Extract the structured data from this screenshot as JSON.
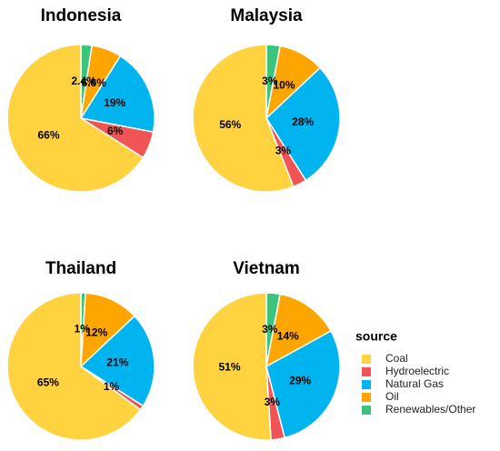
{
  "chart_data": [
    {
      "type": "pie",
      "title": "Indonesia",
      "categories": [
        "Coal",
        "Hydroelectric",
        "Natural Gas",
        "Oil",
        "Renewables/Other"
      ],
      "values": [
        66,
        6,
        19,
        6.6,
        2.4
      ],
      "value_labels": [
        "66%",
        "6%",
        "19%",
        "6.6%",
        "2.4%"
      ],
      "colors": [
        "#FFD23F",
        "#F05454",
        "#00B4F0",
        "#FFA500",
        "#3CC47C"
      ]
    },
    {
      "type": "pie",
      "title": "Malaysia",
      "categories": [
        "Coal",
        "Hydroelectric",
        "Natural Gas",
        "Oil",
        "Renewables/Other"
      ],
      "values": [
        56,
        3,
        28,
        10,
        3
      ],
      "value_labels": [
        "56%",
        "3%",
        "28%",
        "10%",
        "3%"
      ],
      "colors": [
        "#FFD23F",
        "#F05454",
        "#00B4F0",
        "#FFA500",
        "#3CC47C"
      ]
    },
    {
      "type": "pie",
      "title": "Thailand",
      "categories": [
        "Coal",
        "Hydroelectric",
        "Natural Gas",
        "Oil",
        "Renewables/Other"
      ],
      "values": [
        65,
        1,
        21,
        12,
        1
      ],
      "value_labels": [
        "65%",
        "1%",
        "21%",
        "12%",
        "1%"
      ],
      "colors": [
        "#FFD23F",
        "#F05454",
        "#00B4F0",
        "#FFA500",
        "#3CC47C"
      ]
    },
    {
      "type": "pie",
      "title": "Vietnam",
      "categories": [
        "Coal",
        "Hydroelectric",
        "Natural Gas",
        "Oil",
        "Renewables/Other"
      ],
      "values": [
        51,
        3,
        29,
        14,
        3
      ],
      "value_labels": [
        "51%",
        "3%",
        "29%",
        "14%",
        "3%"
      ],
      "colors": [
        "#FFD23F",
        "#F05454",
        "#00B4F0",
        "#FFA500",
        "#3CC47C"
      ]
    }
  ],
  "legend": {
    "title": "source",
    "position": "right"
  }
}
